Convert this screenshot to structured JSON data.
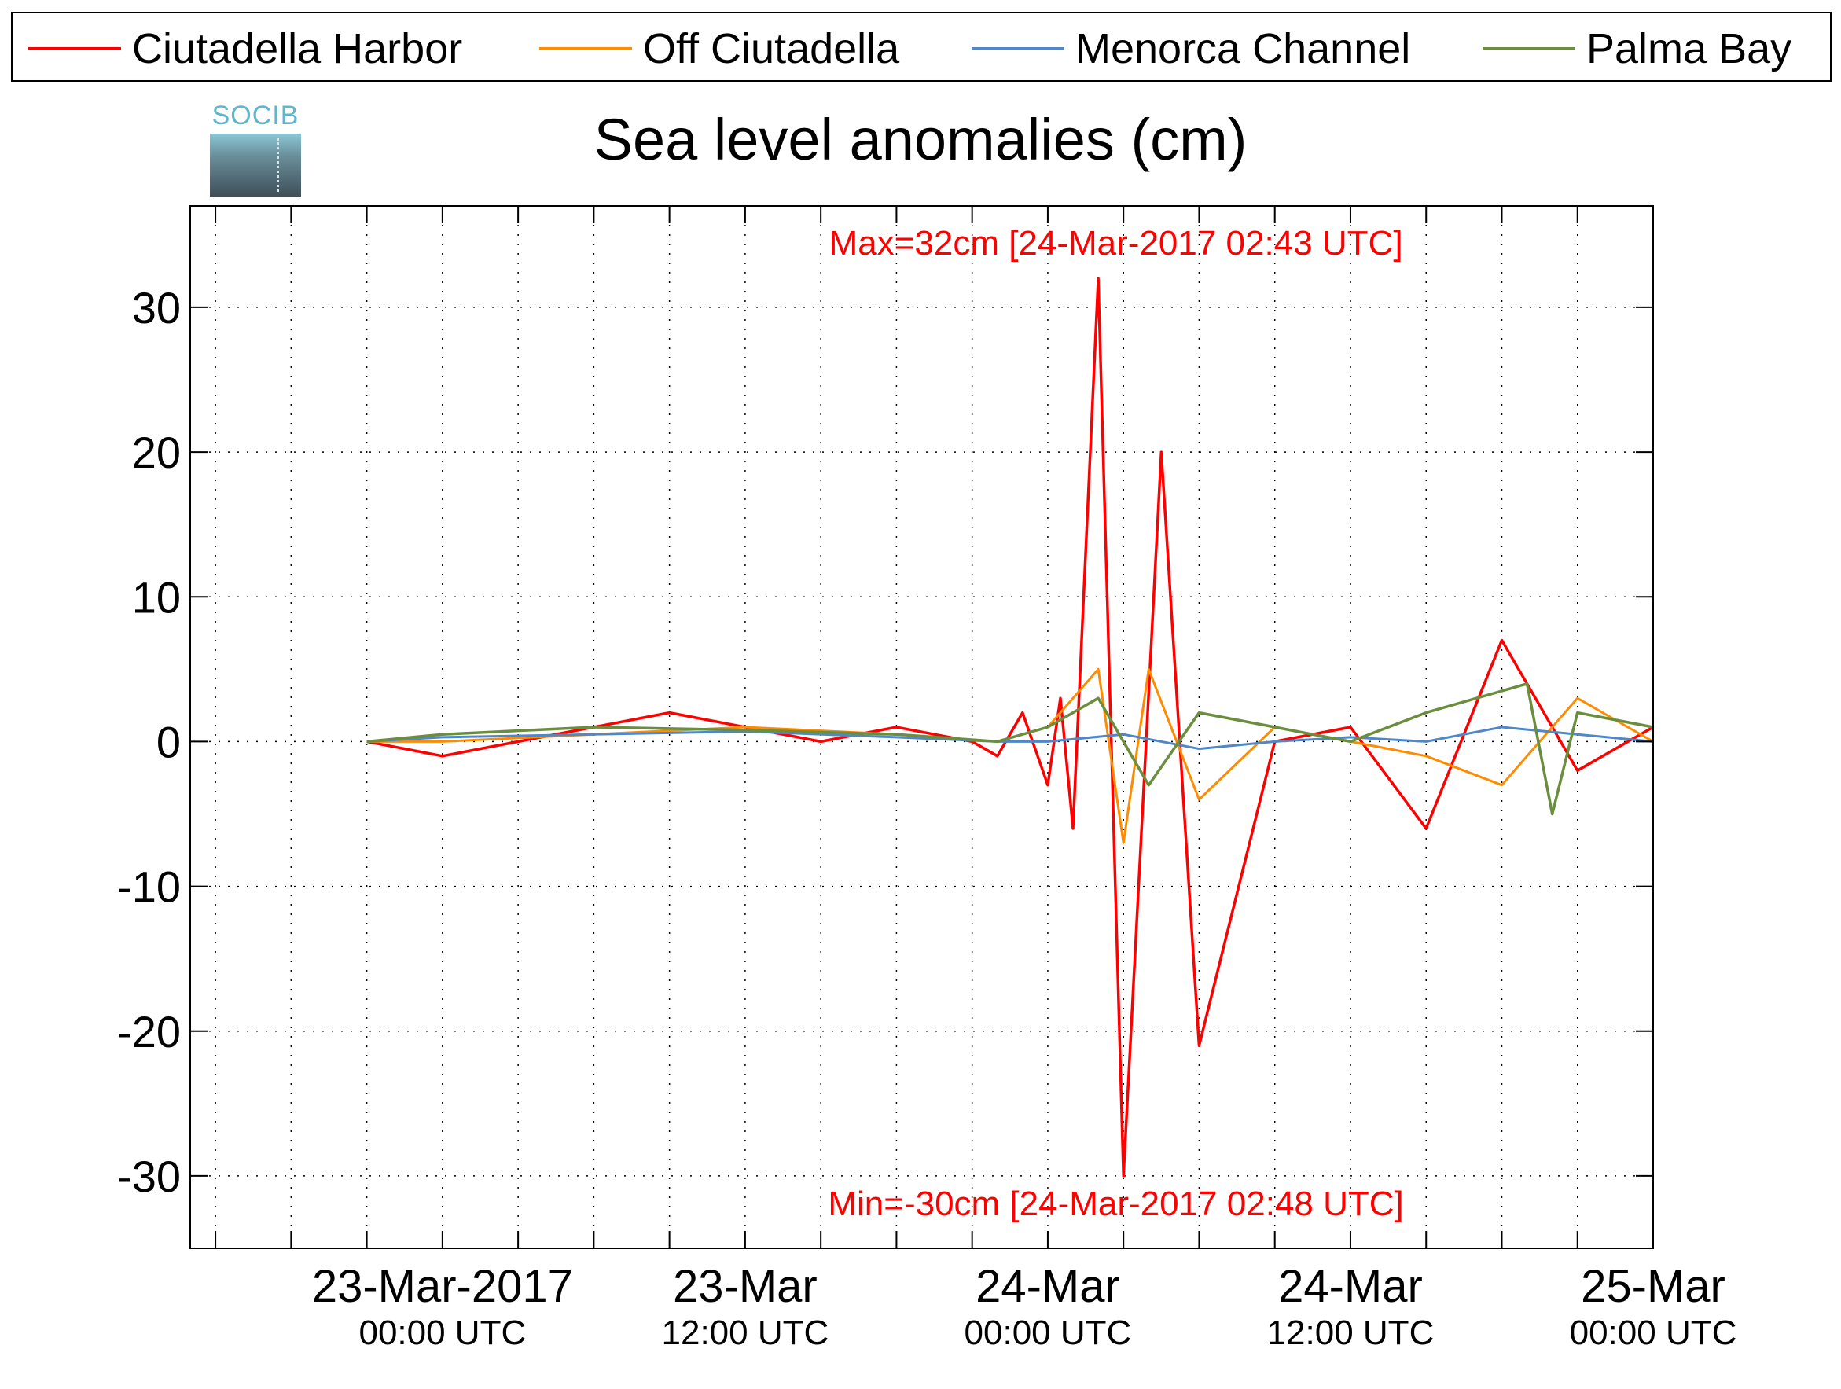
{
  "chart_data": {
    "type": "line",
    "title": "Sea level anomalies (cm)",
    "ylabel": "",
    "xlabel": "",
    "ylim": [
      -35,
      37
    ],
    "xlim_hours": [
      -10,
      48
    ],
    "x_unit": "hours since 23-Mar-2017 00:00 UTC",
    "yticks": [
      30,
      20,
      10,
      0,
      -10,
      -20,
      -30
    ],
    "ytick_labels": [
      "30",
      "20",
      "10",
      "0",
      "-10",
      "-20",
      "-30"
    ],
    "xticks": [
      {
        "hour": 0,
        "line1": "23-Mar-2017",
        "line2": "00:00 UTC"
      },
      {
        "hour": 12,
        "line1": "23-Mar",
        "line2": "12:00 UTC"
      },
      {
        "hour": 24,
        "line1": "24-Mar",
        "line2": "00:00 UTC"
      },
      {
        "hour": 36,
        "line1": "24-Mar",
        "line2": "12:00 UTC"
      },
      {
        "hour": 48,
        "line1": "25-Mar",
        "line2": "00:00 UTC"
      }
    ],
    "grid": true,
    "legend_position": "top",
    "series": [
      {
        "name": "Ciutadella Harbor",
        "color": "#ff0000",
        "x": [
          -3,
          0,
          3,
          6,
          9,
          12,
          15,
          18,
          21,
          22,
          23,
          24,
          24.5,
          25,
          26,
          27,
          28.5,
          30,
          33,
          36,
          39,
          42,
          45,
          48
        ],
        "y": [
          0,
          -1,
          0,
          1,
          2,
          1,
          0,
          1,
          0,
          -1,
          2,
          -3,
          3,
          -6,
          32,
          -30,
          20,
          -21,
          0,
          1,
          -6,
          7,
          -2,
          1
        ]
      },
      {
        "name": "Off Ciutadella",
        "color": "#ff8c00",
        "x": [
          -3,
          0,
          6,
          12,
          18,
          22,
          24,
          25,
          26,
          27,
          28,
          30,
          33,
          36,
          39,
          42,
          45,
          48
        ],
        "y": [
          0,
          0,
          0.5,
          1,
          0.5,
          0,
          1,
          3,
          5,
          -7,
          5,
          -4,
          1,
          0,
          -1,
          -3,
          3,
          0
        ]
      },
      {
        "name": "Menorca Channel",
        "color": "#4f87c8",
        "x": [
          -3,
          0,
          6,
          12,
          18,
          22,
          24,
          27,
          30,
          33,
          36,
          39,
          42,
          45,
          48
        ],
        "y": [
          0,
          0.3,
          0.5,
          0.7,
          0.3,
          0,
          0,
          0.5,
          -0.5,
          0,
          0.3,
          0,
          1,
          0.5,
          0
        ]
      },
      {
        "name": "Palma Bay",
        "color": "#6b8e3e",
        "x": [
          -3,
          0,
          6,
          12,
          18,
          22,
          24,
          26,
          28,
          30,
          33,
          36,
          39,
          41,
          43,
          44,
          45,
          48
        ],
        "y": [
          0,
          0.5,
          1,
          0.8,
          0.5,
          0,
          1,
          3,
          -3,
          2,
          1,
          0,
          2,
          3,
          4,
          -5,
          2,
          1
        ]
      }
    ],
    "annotations": [
      {
        "text": "Max=32cm [24-Mar-2017 02:43 UTC]",
        "color": "#ff0000",
        "near": "top"
      },
      {
        "text": "Min=-30cm [24-Mar-2017 02:48 UTC]",
        "color": "#ff0000",
        "near": "bottom"
      }
    ]
  },
  "logo_text": "SOCIB"
}
